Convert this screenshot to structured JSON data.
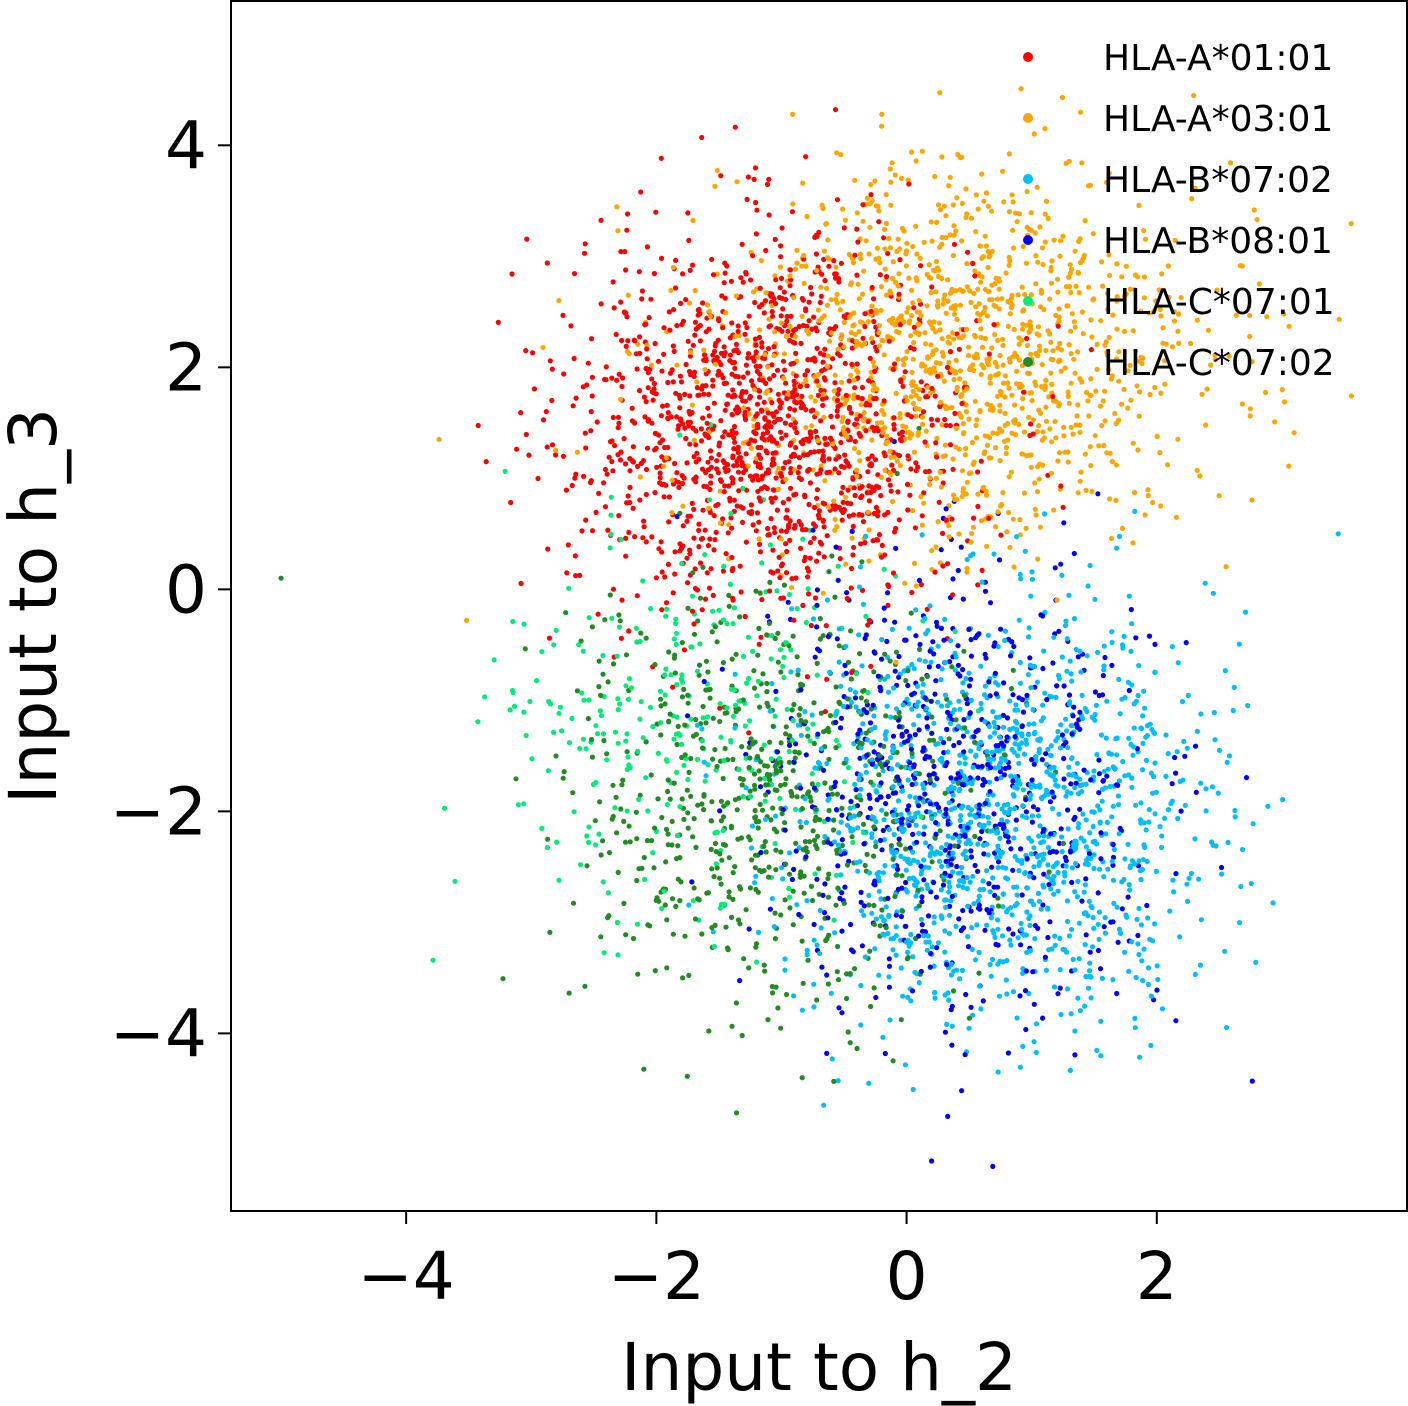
{
  "chart_data": {
    "type": "scatter",
    "title": "",
    "xlabel": "Input to h_2",
    "ylabel": "Input to h_3",
    "xlim": [
      -5.4,
      4.0
    ],
    "ylim": [
      -5.6,
      5.3
    ],
    "xticks": [
      -4,
      -2,
      0,
      2
    ],
    "yticks": [
      -4,
      -2,
      0,
      2,
      4
    ],
    "xtick_labels": [
      "−4",
      "−2",
      "0",
      "2"
    ],
    "ytick_labels": [
      "−4",
      "−2",
      "0",
      "2",
      "4"
    ],
    "grid": false,
    "legend_position": "top-right",
    "series": [
      {
        "name": "HLA-A*01:01",
        "color": "#ff0000",
        "center": [
          -1.1,
          1.5
        ],
        "spread": [
          0.8,
          0.85
        ],
        "count": 1400
      },
      {
        "name": "HLA-A*03:01",
        "color": "#ffa500",
        "center": [
          0.4,
          2.1
        ],
        "spread": [
          1.0,
          0.85
        ],
        "count": 1300
      },
      {
        "name": "HLA-B*07:02",
        "color": "#00bfff",
        "center": [
          0.75,
          -2.0
        ],
        "spread": [
          0.85,
          0.9
        ],
        "count": 1300
      },
      {
        "name": "HLA-B*08:01",
        "color": "#0000ff",
        "center": [
          0.4,
          -1.8
        ],
        "spread": [
          0.75,
          1.0
        ],
        "count": 700
      },
      {
        "name": "HLA-C*07:01",
        "color": "#00ee76",
        "center": [
          -1.7,
          -1.2
        ],
        "spread": [
          0.8,
          0.9
        ],
        "count": 300
      },
      {
        "name": "HLA-C*07:02",
        "color": "#228b22",
        "center": [
          -1.1,
          -1.9
        ],
        "spread": [
          0.8,
          0.95
        ],
        "count": 700
      }
    ],
    "outliers": [
      {
        "series": 5,
        "x": -5.0,
        "y": 0.1
      },
      {
        "series": 2,
        "x": 3.45,
        "y": 0.5
      },
      {
        "series": 3,
        "x": 0.2,
        "y": -5.15
      }
    ]
  }
}
